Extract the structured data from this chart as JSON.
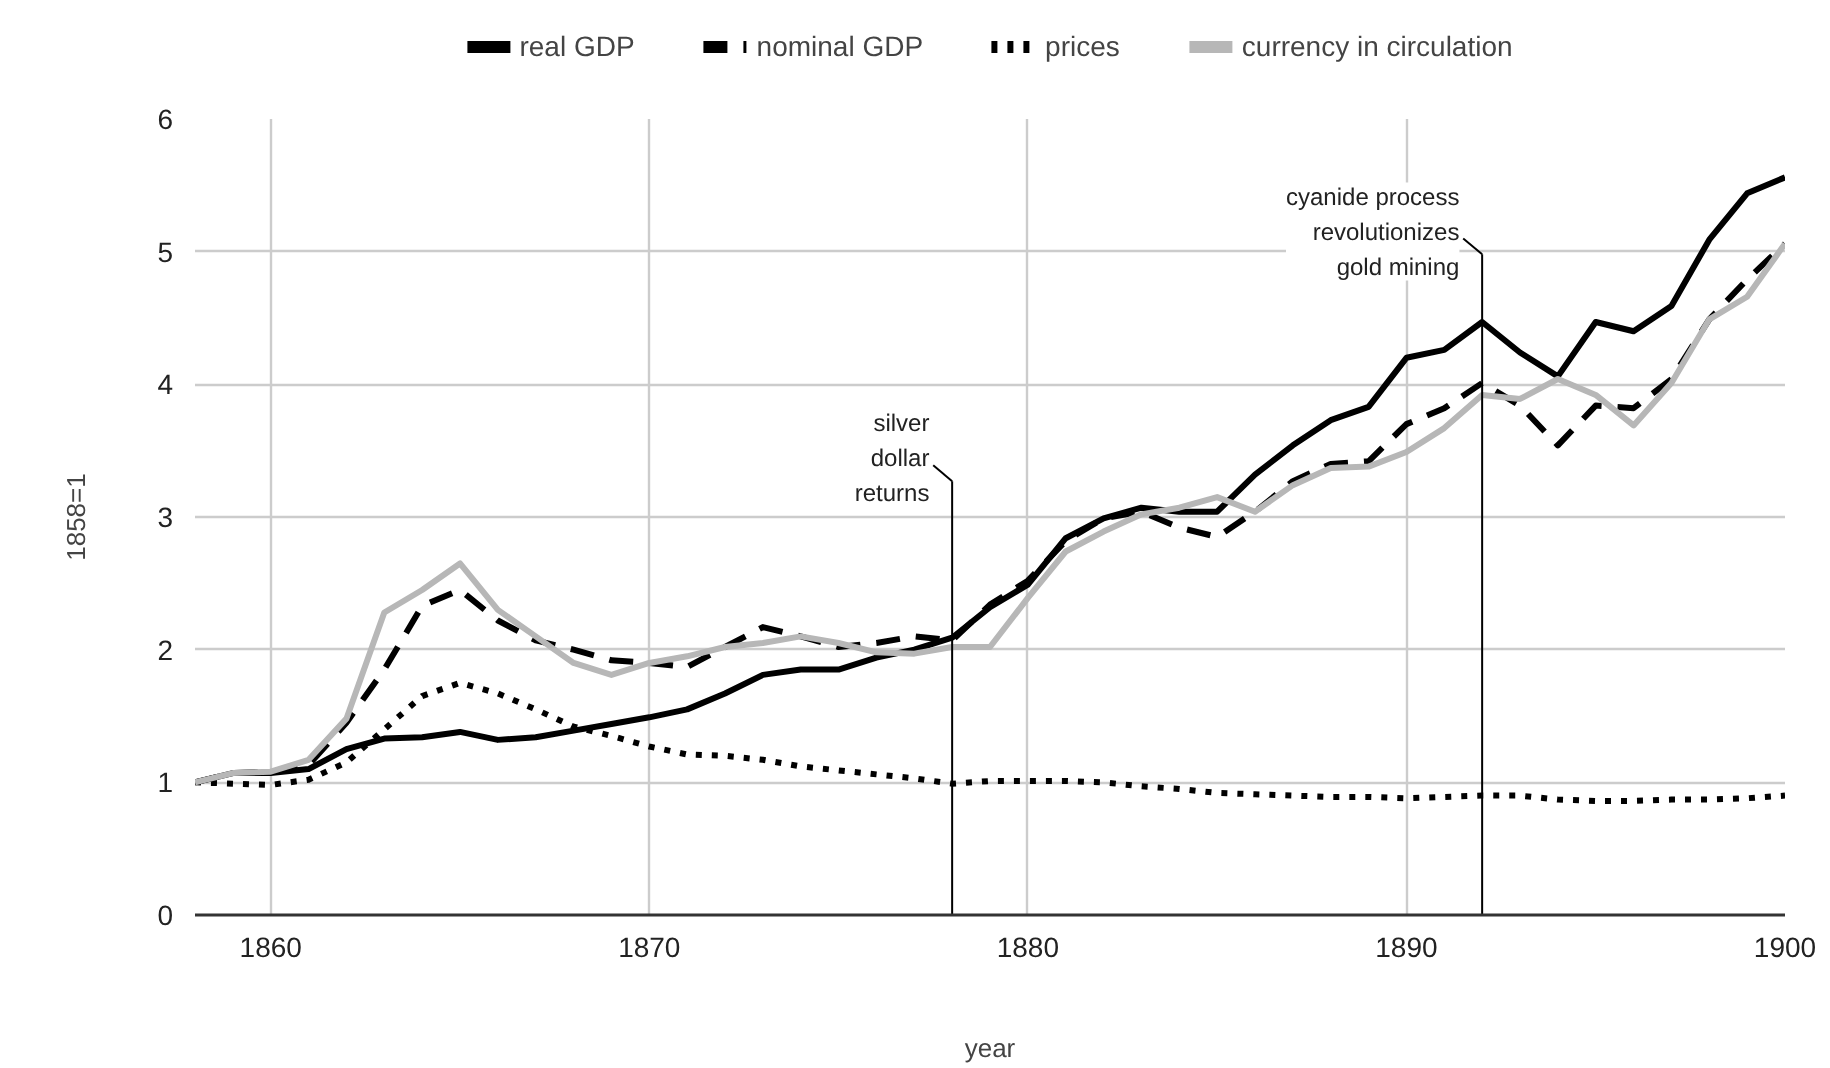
{
  "chart_data": {
    "type": "line",
    "xlabel": "year",
    "ylabel": "1858=1",
    "x": [
      1858,
      1859,
      1860,
      1861,
      1862,
      1863,
      1864,
      1865,
      1866,
      1867,
      1868,
      1869,
      1870,
      1871,
      1872,
      1873,
      1874,
      1875,
      1876,
      1877,
      1878,
      1879,
      1880,
      1881,
      1882,
      1883,
      1884,
      1885,
      1886,
      1887,
      1888,
      1889,
      1890,
      1891,
      1892,
      1893,
      1894,
      1895,
      1896,
      1897,
      1898,
      1899,
      1900
    ],
    "series": [
      {
        "name": "real GDP",
        "color": "#000000",
        "line_style": "solid",
        "values": [
          1.0,
          1.07,
          1.07,
          1.1,
          1.25,
          1.33,
          1.34,
          1.38,
          1.32,
          1.34,
          1.39,
          1.44,
          1.49,
          1.55,
          1.67,
          1.81,
          1.85,
          1.85,
          1.94,
          2.0,
          2.09,
          2.32,
          2.49,
          2.84,
          2.99,
          3.07,
          3.04,
          3.04,
          3.32,
          3.54,
          3.73,
          3.83,
          4.2,
          4.26,
          4.47,
          4.24,
          4.06,
          4.47,
          4.4,
          4.59,
          5.09,
          5.44,
          5.56
        ]
      },
      {
        "name": "nominal GDP",
        "color": "#000000",
        "line_style": "dashed",
        "values": [
          1.0,
          1.07,
          1.08,
          1.13,
          1.45,
          1.85,
          2.33,
          2.45,
          2.22,
          2.07,
          2.0,
          1.92,
          1.9,
          1.87,
          2.02,
          2.17,
          2.1,
          2.02,
          2.05,
          2.1,
          2.07,
          2.34,
          2.52,
          2.82,
          2.99,
          3.04,
          2.92,
          2.85,
          3.04,
          3.27,
          3.4,
          3.42,
          3.7,
          3.82,
          4.01,
          3.84,
          3.54,
          3.84,
          3.82,
          4.04,
          4.49,
          4.79,
          5.06
        ]
      },
      {
        "name": "prices",
        "color": "#000000",
        "line_style": "dotted",
        "values": [
          1.0,
          0.99,
          0.98,
          1.02,
          1.15,
          1.4,
          1.65,
          1.75,
          1.67,
          1.55,
          1.42,
          1.35,
          1.27,
          1.21,
          1.2,
          1.17,
          1.12,
          1.09,
          1.06,
          1.03,
          0.99,
          1.01,
          1.01,
          1.01,
          1.0,
          0.97,
          0.95,
          0.92,
          0.91,
          0.9,
          0.89,
          0.89,
          0.88,
          0.89,
          0.9,
          0.9,
          0.87,
          0.86,
          0.86,
          0.87,
          0.87,
          0.88,
          0.9
        ]
      },
      {
        "name": "currency in circulation",
        "color": "#b7b7b7",
        "line_style": "solid",
        "values": [
          1.0,
          1.07,
          1.08,
          1.17,
          1.48,
          2.28,
          2.45,
          2.65,
          2.3,
          2.1,
          1.9,
          1.81,
          1.9,
          1.95,
          2.02,
          2.05,
          2.1,
          2.05,
          1.98,
          1.97,
          2.02,
          2.02,
          2.39,
          2.74,
          2.89,
          3.02,
          3.07,
          3.15,
          3.04,
          3.24,
          3.37,
          3.38,
          3.49,
          3.67,
          3.92,
          3.89,
          4.04,
          3.92,
          3.69,
          4.01,
          4.49,
          4.66,
          5.06
        ]
      }
    ],
    "xlim": [
      1858,
      1900
    ],
    "xticks": [
      1860,
      1870,
      1880,
      1890,
      1900
    ],
    "ylim": [
      0,
      6
    ],
    "yticks": [
      0,
      1,
      2,
      3,
      4,
      5,
      6
    ],
    "grid": true,
    "legend": "top",
    "ref_lines": [
      {
        "axis": "x",
        "value": 1878,
        "label": "silver\ndollar\nreturns",
        "color": "#000000"
      },
      {
        "axis": "x",
        "value": 1892,
        "label": "cyanide process\nrevolutionizes\ngold mining",
        "color": "#000000"
      }
    ]
  }
}
